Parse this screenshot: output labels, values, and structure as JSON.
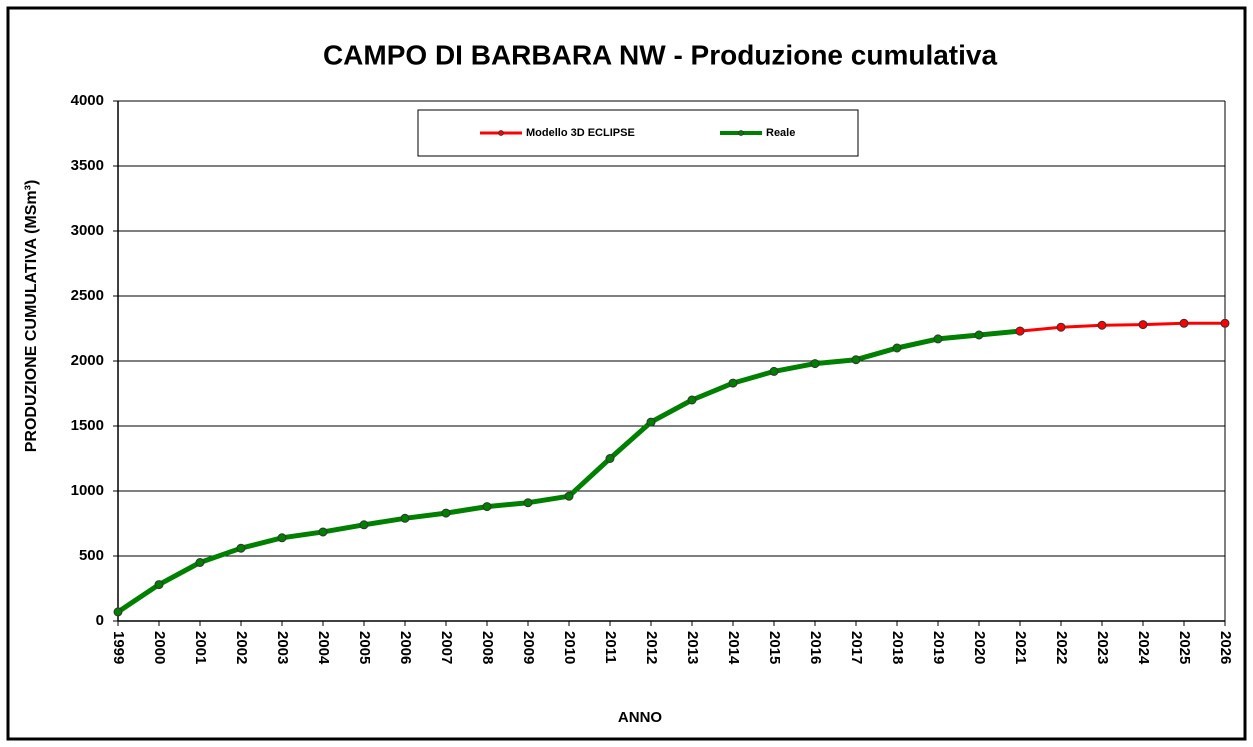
{
  "chart_data": {
    "type": "line",
    "title": "CAMPO DI BARBARA NW - Produzione cumulativa",
    "x_label": "ANNO",
    "y_label": "PRODUZIONE CUMULATIVA (MSm³)",
    "categories": [
      "1999",
      "2000",
      "2001",
      "2002",
      "2003",
      "2004",
      "2005",
      "2006",
      "2007",
      "2008",
      "2009",
      "2010",
      "2011",
      "2012",
      "2013",
      "2014",
      "2015",
      "2016",
      "2017",
      "2018",
      "2019",
      "2020",
      "2021",
      "2022",
      "2023",
      "2024",
      "2025",
      "2026"
    ],
    "series": [
      {
        "name": "Modello 3D ECLIPSE",
        "color": "#ff0000",
        "values": [
          null,
          null,
          null,
          null,
          null,
          null,
          null,
          null,
          null,
          null,
          null,
          null,
          null,
          null,
          null,
          null,
          null,
          null,
          null,
          null,
          null,
          null,
          2230,
          2260,
          2275,
          2280,
          2290,
          2290
        ]
      },
      {
        "name": "Reale",
        "color": "#008000",
        "values": [
          70,
          280,
          450,
          560,
          640,
          685,
          740,
          790,
          830,
          880,
          910,
          960,
          1250,
          1530,
          1700,
          1830,
          1920,
          1980,
          2010,
          2100,
          2170,
          2200,
          2230,
          null,
          null,
          null,
          null,
          null
        ]
      }
    ],
    "ylim": [
      0,
      4000
    ],
    "yticks": [
      0,
      500,
      1000,
      1500,
      2000,
      2500,
      3000,
      3500,
      4000
    ],
    "grid": true,
    "legend": "top"
  }
}
